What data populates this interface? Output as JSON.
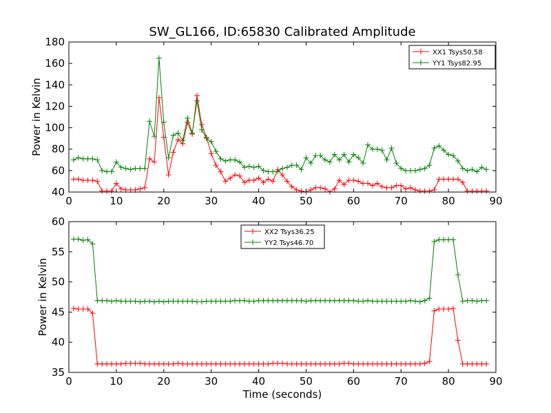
{
  "title": "SW_GL166, ID:65830 Calibrated Amplitude",
  "chart_data": [
    {
      "type": "line",
      "title": "SW_GL166, ID:65830 Calibrated Amplitude",
      "xlabel": "",
      "ylabel": "Power in Kelvin",
      "xlim": [
        0,
        90
      ],
      "ylim": [
        40,
        180
      ],
      "xticks": [
        "0",
        "10",
        "20",
        "30",
        "40",
        "50",
        "60",
        "70",
        "80",
        "90"
      ],
      "yticks": [
        "40",
        "60",
        "80",
        "100",
        "120",
        "140",
        "160",
        "180"
      ],
      "grid": false,
      "legend": "top-right",
      "marker": "+",
      "x": [
        1,
        2,
        3,
        4,
        5,
        6,
        7,
        8,
        9,
        10,
        11,
        12,
        13,
        14,
        15,
        16,
        17,
        18,
        19,
        20,
        21,
        22,
        23,
        24,
        25,
        26,
        27,
        28,
        29,
        30,
        31,
        32,
        33,
        34,
        35,
        36,
        37,
        38,
        39,
        40,
        41,
        42,
        43,
        44,
        45,
        46,
        47,
        48,
        49,
        50,
        51,
        52,
        53,
        54,
        55,
        56,
        57,
        58,
        59,
        60,
        61,
        62,
        63,
        64,
        65,
        66,
        67,
        68,
        69,
        70,
        71,
        72,
        73,
        74,
        75,
        76,
        77,
        78,
        79,
        80,
        81,
        82,
        83,
        84,
        85,
        86,
        87,
        88
      ],
      "series": [
        {
          "name": "XX1 Tsys50.58",
          "color": "#ff0000",
          "values": [
            52,
            52,
            51,
            51,
            51,
            50,
            41,
            41,
            41,
            48,
            43,
            42,
            42,
            42,
            43,
            44,
            71,
            68,
            128,
            91,
            56,
            77,
            89,
            85,
            105,
            94,
            130,
            103,
            91,
            76,
            65,
            59,
            50,
            53,
            56,
            55,
            49,
            51,
            51,
            53,
            49,
            52,
            50,
            61,
            56,
            50,
            45,
            42,
            41,
            40,
            42,
            44,
            44,
            43,
            40,
            43,
            51,
            47,
            51,
            51,
            50,
            48,
            48,
            46,
            48,
            45,
            44,
            44,
            46,
            46,
            43,
            44,
            42,
            41,
            41,
            41,
            42,
            52,
            52,
            52,
            52,
            52,
            49,
            41,
            41,
            41,
            41,
            41
          ]
        },
        {
          "name": "YY1 Tsys82.95",
          "color": "#008000",
          "values": [
            70,
            72,
            71,
            71,
            71,
            70,
            60,
            59,
            59,
            68,
            63,
            62,
            61,
            62,
            62,
            62,
            106,
            92,
            165,
            105,
            72,
            93,
            95,
            88,
            109,
            95,
            125,
            98,
            90,
            87,
            78,
            71,
            69,
            70,
            70,
            68,
            63,
            64,
            63,
            64,
            60,
            59,
            59,
            59,
            62,
            63,
            65,
            65,
            61,
            72,
            67,
            74,
            74,
            70,
            68,
            75,
            70,
            75,
            68,
            75,
            72,
            67,
            84,
            80,
            80,
            79,
            70,
            81,
            67,
            62,
            60,
            60,
            60,
            61,
            62,
            65,
            81,
            83,
            79,
            75,
            74,
            69,
            62,
            60,
            61,
            59,
            63,
            61
          ]
        }
      ]
    },
    {
      "type": "line",
      "title": "",
      "xlabel": "Time (seconds)",
      "ylabel": "Power in Kelvin",
      "xlim": [
        0,
        90
      ],
      "ylim": [
        35,
        60
      ],
      "xticks": [
        "0",
        "10",
        "20",
        "30",
        "40",
        "50",
        "60",
        "70",
        "80",
        "90"
      ],
      "yticks": [
        "35",
        "40",
        "45",
        "50",
        "55",
        "60"
      ],
      "grid": false,
      "legend": "top-center",
      "marker": "+",
      "x": [
        1,
        2,
        3,
        4,
        5,
        6,
        7,
        8,
        9,
        10,
        11,
        12,
        13,
        14,
        15,
        16,
        17,
        18,
        19,
        20,
        21,
        22,
        23,
        24,
        25,
        26,
        27,
        28,
        29,
        30,
        31,
        32,
        33,
        34,
        35,
        36,
        37,
        38,
        39,
        40,
        41,
        42,
        43,
        44,
        45,
        46,
        47,
        48,
        49,
        50,
        51,
        52,
        53,
        54,
        55,
        56,
        57,
        58,
        59,
        60,
        61,
        62,
        63,
        64,
        65,
        66,
        67,
        68,
        69,
        70,
        71,
        72,
        73,
        74,
        75,
        76,
        77,
        78,
        79,
        80,
        81,
        82,
        83,
        84,
        85,
        86,
        87,
        88
      ],
      "series": [
        {
          "name": "XX2 Tsys36.25",
          "color": "#ff0000",
          "values": [
            45.6,
            45.5,
            45.5,
            45.5,
            44.8,
            36.4,
            36.4,
            36.4,
            36.4,
            36.4,
            36.4,
            36.5,
            36.5,
            36.5,
            36.5,
            36.4,
            36.4,
            36.4,
            36.4,
            36.4,
            36.4,
            36.4,
            36.5,
            36.4,
            36.4,
            36.4,
            36.4,
            36.4,
            36.4,
            36.4,
            36.4,
            36.4,
            36.4,
            36.4,
            36.4,
            36.4,
            36.4,
            36.4,
            36.4,
            36.4,
            36.4,
            36.4,
            36.5,
            36.5,
            36.5,
            36.4,
            36.4,
            36.4,
            36.4,
            36.4,
            36.4,
            36.4,
            36.4,
            36.4,
            36.4,
            36.4,
            36.4,
            36.5,
            36.5,
            36.4,
            36.4,
            36.4,
            36.4,
            36.4,
            36.4,
            36.4,
            36.4,
            36.4,
            36.4,
            36.4,
            36.4,
            36.4,
            36.4,
            36.4,
            36.5,
            36.8,
            45.2,
            45.5,
            45.5,
            45.5,
            45.6,
            40.3,
            36.4,
            36.4,
            36.4,
            36.4,
            36.4,
            36.4
          ]
        },
        {
          "name": "YY2 Tsys46.70",
          "color": "#008000",
          "values": [
            57.1,
            57.1,
            56.9,
            57.0,
            56.3,
            46.9,
            46.9,
            46.9,
            46.8,
            46.9,
            46.8,
            46.8,
            46.8,
            46.8,
            46.7,
            46.8,
            46.8,
            46.7,
            46.8,
            46.7,
            46.8,
            46.8,
            46.8,
            46.8,
            46.8,
            46.8,
            46.7,
            46.7,
            46.8,
            46.8,
            46.8,
            46.8,
            46.8,
            46.8,
            46.9,
            46.9,
            46.9,
            46.8,
            46.8,
            46.9,
            46.9,
            46.9,
            46.9,
            46.9,
            46.9,
            46.9,
            46.9,
            46.9,
            46.9,
            46.8,
            46.9,
            46.9,
            46.9,
            46.9,
            46.9,
            46.9,
            46.9,
            46.9,
            46.9,
            46.9,
            46.8,
            46.8,
            46.9,
            46.8,
            46.8,
            46.8,
            46.8,
            46.8,
            46.8,
            46.8,
            46.8,
            46.9,
            46.8,
            46.7,
            46.9,
            47.3,
            56.7,
            57.0,
            57.0,
            57.0,
            57.0,
            51.2,
            46.8,
            46.9,
            46.9,
            46.8,
            46.9,
            46.9
          ]
        }
      ]
    }
  ]
}
